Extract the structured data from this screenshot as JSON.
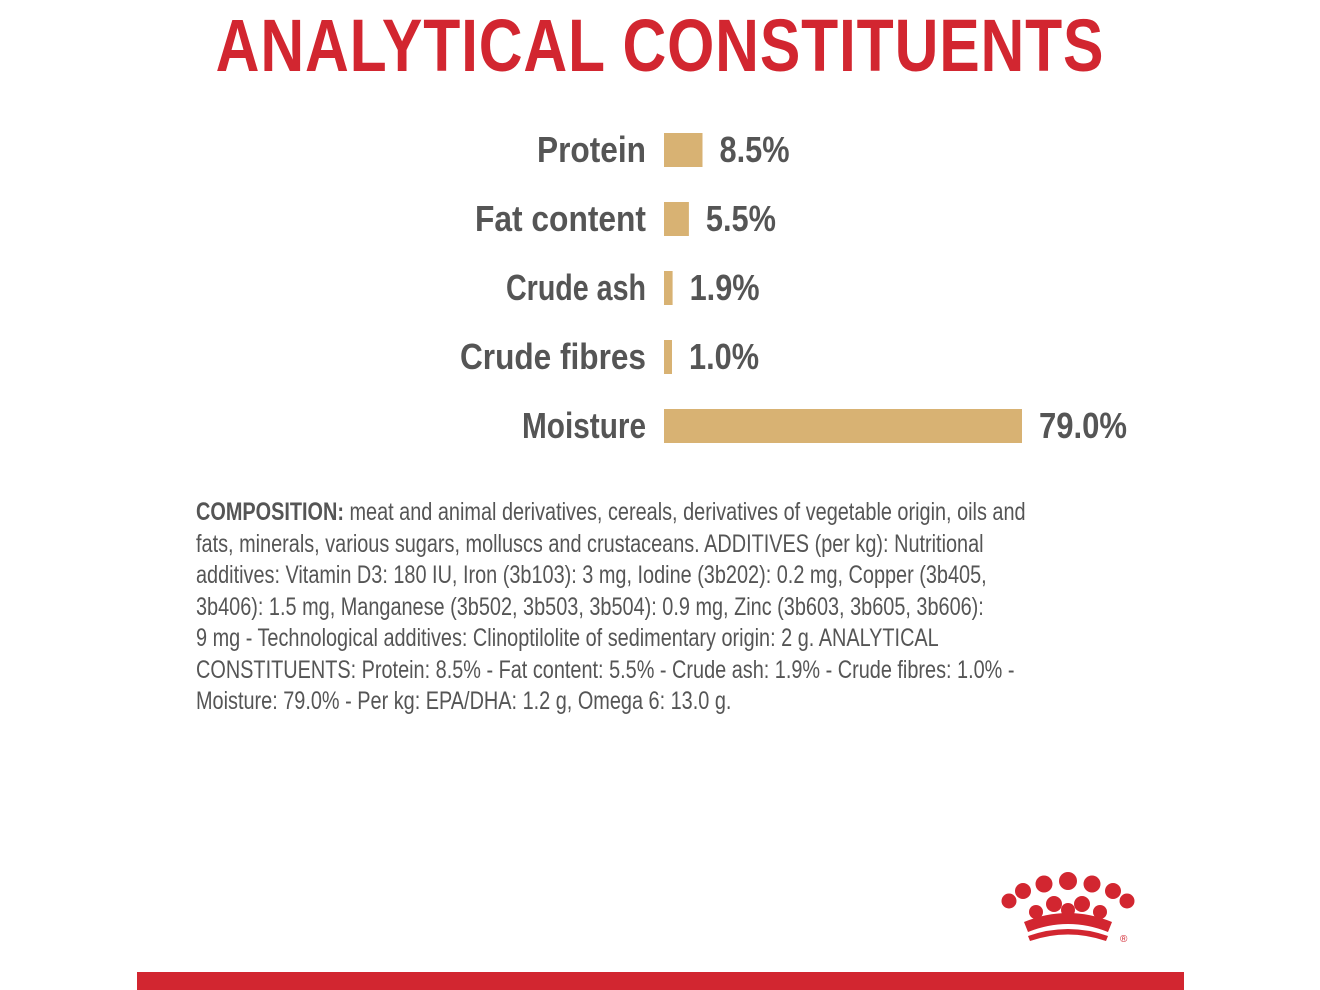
{
  "title": "ANALYTICAL CONSTITUENTS",
  "chart_data": {
    "type": "bar",
    "orientation": "horizontal",
    "categories": [
      "Protein",
      "Fat content",
      "Crude ash",
      "Crude fibres",
      "Moisture"
    ],
    "values": [
      8.5,
      5.5,
      1.9,
      1.0,
      79.0
    ],
    "value_labels": [
      "8.5%",
      "5.5%",
      "1.9%",
      "1.0%",
      "79.0%"
    ],
    "unit": "%",
    "bar_color": "#d8b273",
    "xlim": [
      0,
      79
    ],
    "grid": false,
    "legend": "none"
  },
  "composition": {
    "lead": "COMPOSITION:",
    "lines": [
      " meat and animal derivatives, cereals, derivatives of vegetable origin, oils and",
      "fats, minerals, various sugars, molluscs and crustaceans. ADDITIVES (per kg): Nutritional",
      "additives: Vitamin D3: 180 IU, Iron (3b103): 3 mg, Iodine (3b202): 0.2 mg, Copper (3b405,",
      "3b406): 1.5 mg, Manganese (3b502, 3b503, 3b504): 0.9 mg, Zinc (3b603, 3b605, 3b606):",
      "9 mg - Technological additives: Clinoptilolite of sedimentary origin: 2 g. ANALYTICAL",
      "CONSTITUENTS: Protein: 8.5% - Fat content: 5.5% - Crude ash: 1.9% - Crude fibres: 1.0% -",
      "Moisture: 79.0% - Per kg: EPA/DHA: 1.2 g, Omega 6: 13.0 g."
    ]
  },
  "logo": {
    "name": "crown-logo",
    "registered_mark": "®"
  },
  "colors": {
    "brand_red": "#d22630",
    "bar": "#d8b273",
    "text": "#555555"
  }
}
